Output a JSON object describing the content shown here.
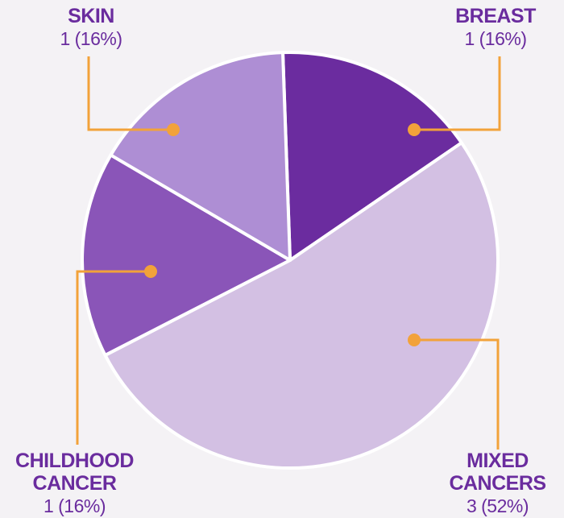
{
  "chart_data": {
    "type": "pie",
    "slices": [
      {
        "lines": [
          "BREAST"
        ],
        "count": "1",
        "value": 16,
        "value_text": "1 (16%)",
        "color": "#6b2c9f"
      },
      {
        "lines": [
          "MIXED",
          "CANCERS"
        ],
        "count": "3",
        "value": 52,
        "value_text": "3 (52%)",
        "color": "#d3c0e3"
      },
      {
        "lines": [
          "CHILDHOOD",
          "CANCER"
        ],
        "count": "1",
        "value": 16,
        "value_text": "1 (16%)",
        "color": "#8a55b8"
      },
      {
        "lines": [
          "SKIN"
        ],
        "count": "1",
        "value": 16,
        "value_text": "1 (16%)",
        "color": "#ae8ed4"
      }
    ],
    "leader_color": "#f2a23a",
    "title": "",
    "legend": "none"
  }
}
